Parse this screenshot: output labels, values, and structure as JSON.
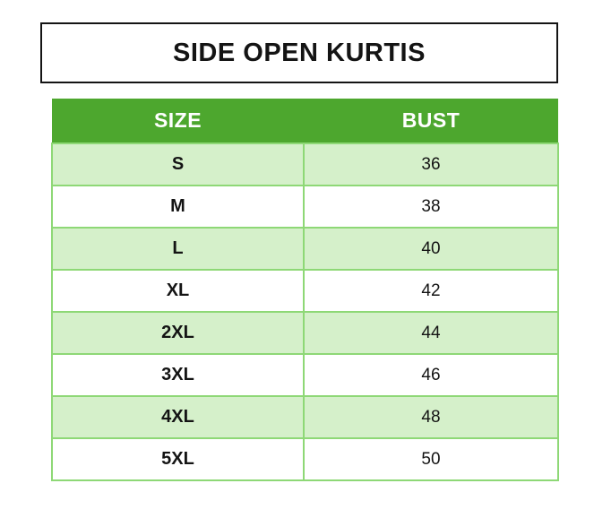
{
  "title_box": {
    "title": "SIDE OPEN KURTIS"
  },
  "colors": {
    "header_green": "#4da72e",
    "row_stripe_green": "#d5f0ca",
    "border_green": "#8ed876",
    "title_border": "#141414",
    "text": "#141414",
    "header_text": "#ffffff"
  },
  "chart_data": {
    "type": "table",
    "title": "SIDE OPEN KURTIS",
    "columns": [
      "SIZE",
      "BUST"
    ],
    "rows": [
      [
        "S",
        "36"
      ],
      [
        "M",
        "38"
      ],
      [
        "L",
        "40"
      ],
      [
        "XL",
        "42"
      ],
      [
        "2XL",
        "44"
      ],
      [
        "3XL",
        "46"
      ],
      [
        "4XL",
        "48"
      ],
      [
        "5XL",
        "50"
      ]
    ]
  }
}
